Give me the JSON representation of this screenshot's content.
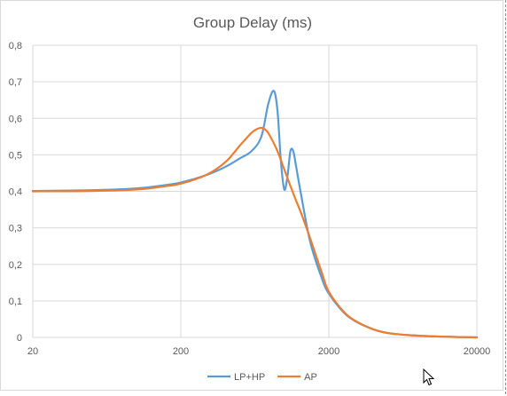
{
  "chart_data": {
    "type": "line",
    "title": "Group Delay (ms)",
    "x_scale": "log",
    "xlim": [
      20,
      20000
    ],
    "ylim": [
      0,
      0.8
    ],
    "x_ticks": [
      "20",
      "200",
      "2000",
      "20000"
    ],
    "x_tick_values": [
      20,
      200,
      2000,
      20000
    ],
    "y_ticks": [
      "0",
      "0,1",
      "0,2",
      "0,3",
      "0,4",
      "0,5",
      "0,6",
      "0,7",
      "0,8"
    ],
    "y_tick_values": [
      0,
      0.1,
      0.2,
      0.3,
      0.4,
      0.5,
      0.6,
      0.7,
      0.8
    ],
    "grid": true,
    "legend_position": "bottom",
    "series": [
      {
        "name": "LP+HP",
        "color": "#5b9bd5",
        "x": [
          20,
          50,
          100,
          150,
          200,
          300,
          400,
          500,
          600,
          700,
          780,
          850,
          900,
          950,
          1000,
          1050,
          1100,
          1150,
          1200,
          1300,
          1500,
          1800,
          2000,
          2500,
          3000,
          4000,
          5000,
          7000,
          10000,
          15000,
          20000
        ],
        "y": [
          0.401,
          0.403,
          0.408,
          0.416,
          0.424,
          0.445,
          0.467,
          0.49,
          0.51,
          0.55,
          0.64,
          0.675,
          0.62,
          0.48,
          0.405,
          0.44,
          0.51,
          0.51,
          0.47,
          0.39,
          0.26,
          0.16,
          0.12,
          0.07,
          0.045,
          0.022,
          0.012,
          0.006,
          0.003,
          0.001,
          0.0
        ]
      },
      {
        "name": "AP",
        "color": "#ed7d31",
        "x": [
          20,
          50,
          100,
          150,
          200,
          300,
          400,
          500,
          600,
          650,
          700,
          750,
          800,
          900,
          1000,
          1100,
          1200,
          1300,
          1500,
          1800,
          2000,
          2500,
          3000,
          4000,
          5000,
          7000,
          10000,
          15000,
          20000
        ],
        "y": [
          0.4,
          0.401,
          0.405,
          0.413,
          0.421,
          0.446,
          0.48,
          0.525,
          0.56,
          0.57,
          0.574,
          0.568,
          0.552,
          0.51,
          0.46,
          0.415,
          0.375,
          0.34,
          0.27,
          0.175,
          0.125,
          0.072,
          0.046,
          0.022,
          0.012,
          0.006,
          0.003,
          0.001,
          0.0
        ]
      }
    ]
  }
}
